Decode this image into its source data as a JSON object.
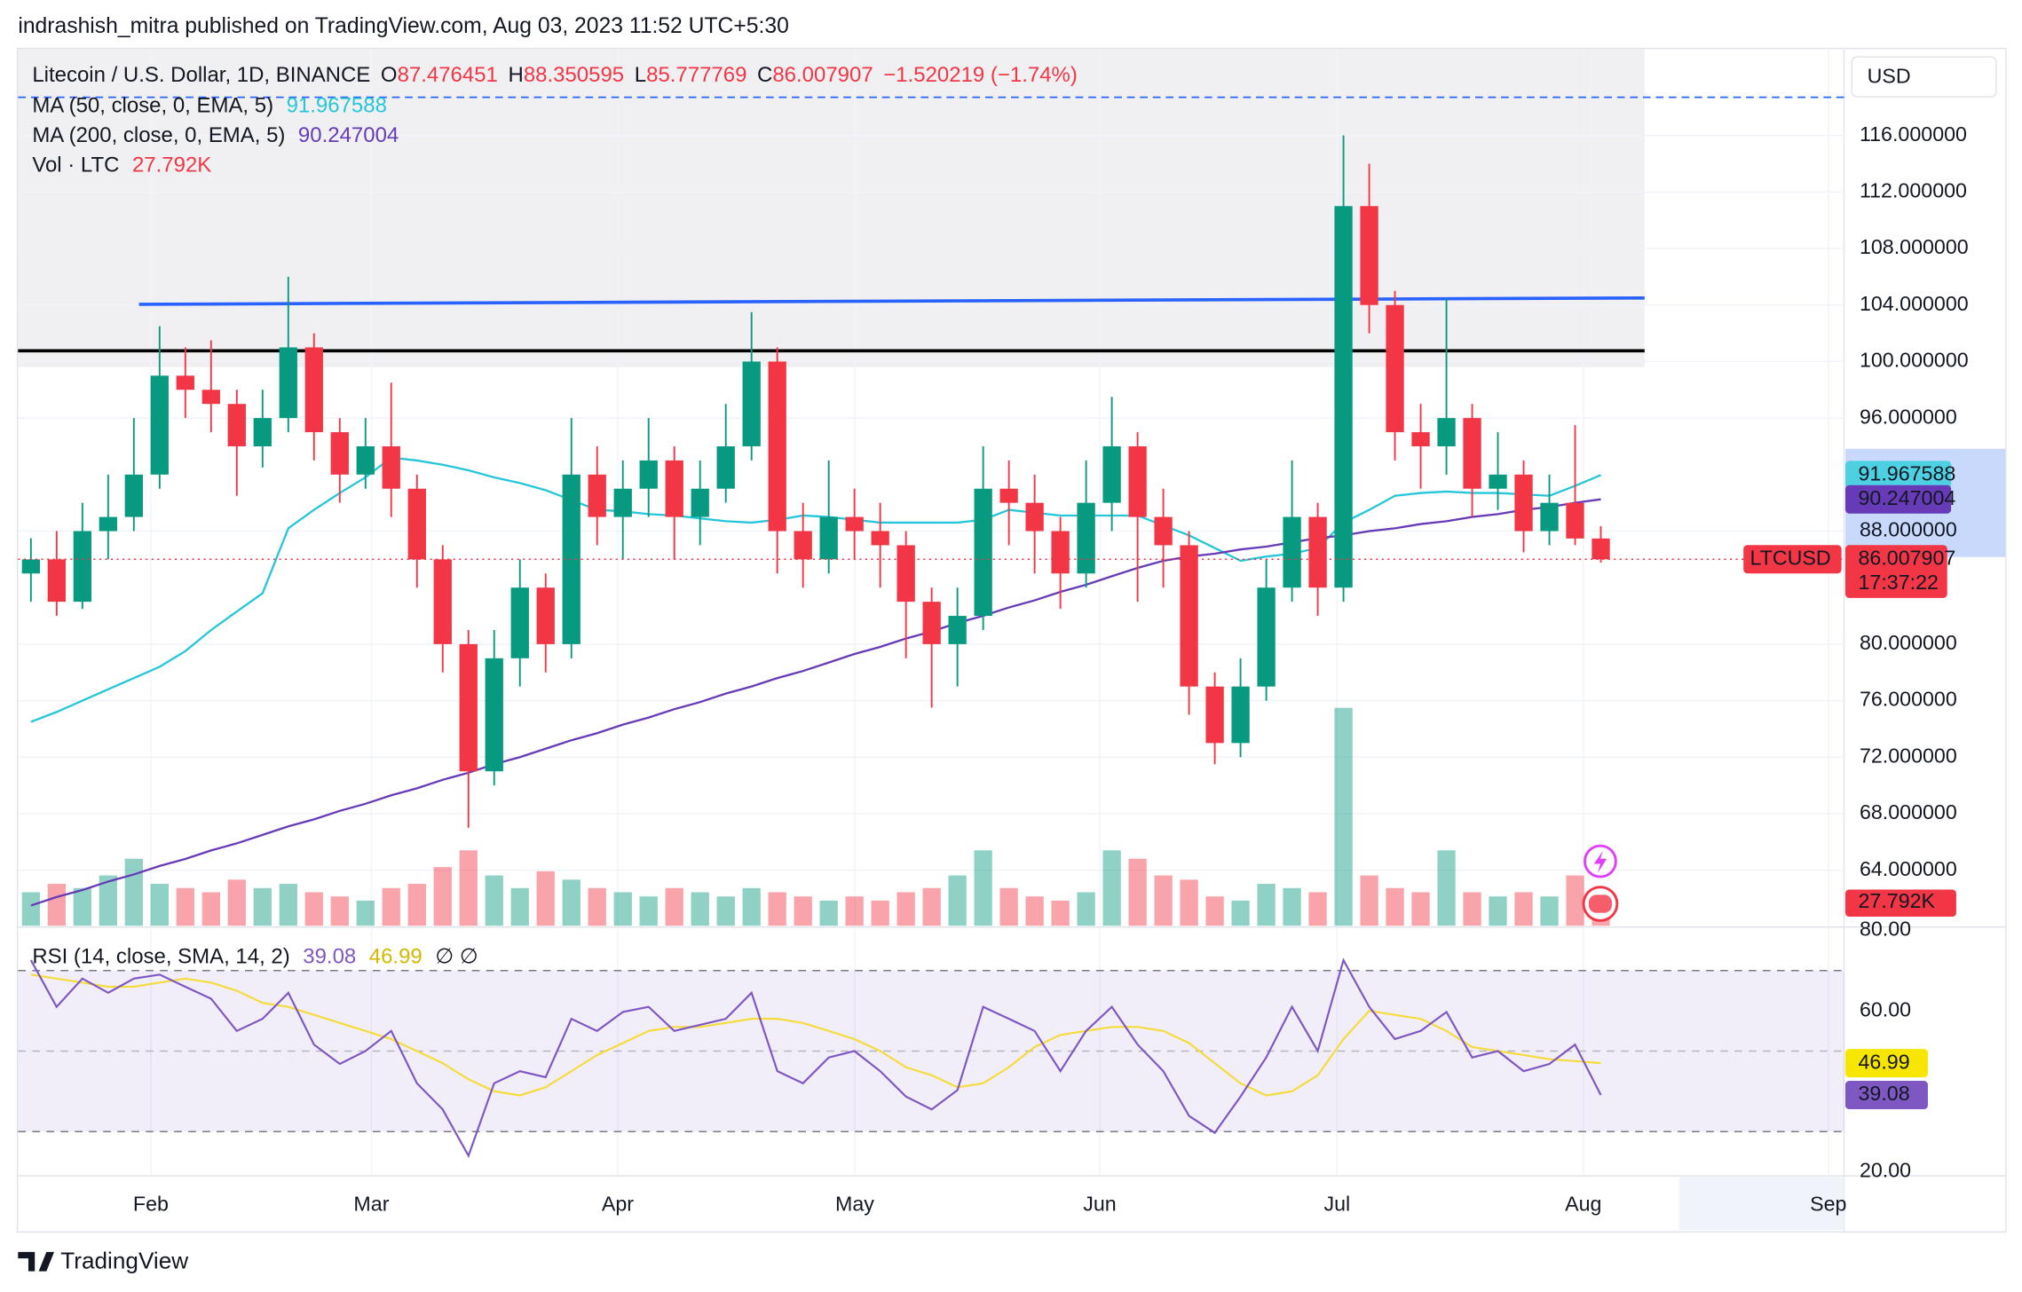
{
  "header": "indrashish_mitra published on TradingView.com, Aug 03, 2023 11:52 UTC+5:30",
  "footer_logo": "TradingView",
  "chart_data": {
    "type": "candlestick",
    "title": "Litecoin / U.S. Dollar, 1D, BINANCE",
    "ohlc_letters": [
      "O",
      "H",
      "L",
      "C"
    ],
    "change": "−1.520219 (−1.74%)",
    "currency": "USD",
    "symbol": "LTCUSD",
    "countdown": "17:37:22",
    "up_color": "#089981",
    "down_color": "#f23645",
    "candles": {
      "open": [
        85,
        86,
        83,
        88,
        89,
        92,
        99,
        98,
        97,
        94,
        96,
        101,
        95,
        92,
        94,
        91,
        86,
        80,
        71,
        79,
        84,
        80,
        92,
        89,
        91,
        93,
        89,
        91,
        94,
        100,
        88,
        86,
        89,
        88,
        87,
        83,
        80,
        82,
        91,
        90,
        88,
        85,
        90,
        94,
        89,
        87,
        77,
        73,
        77,
        84,
        89,
        84,
        111,
        104,
        95,
        94,
        96,
        91,
        92,
        88,
        90,
        87.476451
      ],
      "high": [
        87.5,
        88,
        90,
        92,
        96,
        102.5,
        101,
        101.5,
        98,
        98,
        106,
        102,
        96,
        96,
        98.5,
        92,
        87,
        81,
        81,
        86,
        85,
        96,
        94,
        93,
        96,
        94,
        93,
        97,
        103.5,
        101,
        90,
        93,
        91,
        90,
        88,
        84,
        84,
        94,
        93,
        92,
        89,
        93,
        97.5,
        95,
        91,
        88,
        78,
        79,
        86,
        93,
        90,
        116,
        114,
        105,
        97,
        104.5,
        97,
        95,
        93,
        92,
        95.5,
        88.350595
      ],
      "low": [
        83,
        82,
        82.5,
        86,
        88,
        91,
        96,
        95,
        90.5,
        92.5,
        95,
        93,
        90,
        91,
        89,
        84,
        78,
        67,
        70,
        77,
        78,
        79,
        87,
        86,
        89,
        86,
        87,
        90,
        93,
        85,
        84,
        85,
        86,
        84,
        79,
        75.5,
        77,
        81,
        87,
        85,
        82.5,
        84,
        88,
        83,
        84,
        75,
        71.5,
        72,
        76,
        83,
        82,
        83,
        102,
        93,
        91,
        92,
        89,
        89.5,
        86.5,
        87,
        87,
        85.777769
      ],
      "close": [
        86,
        83,
        88,
        89,
        92,
        99,
        98,
        97,
        94,
        96,
        101,
        95,
        92,
        94,
        91,
        86,
        80,
        71,
        79,
        84,
        80,
        92,
        89,
        91,
        93,
        89,
        91,
        94,
        100,
        88,
        86,
        89,
        88,
        87,
        83,
        80,
        82,
        91,
        90,
        88,
        85,
        90,
        94,
        89,
        87,
        77,
        73,
        77,
        84,
        89,
        84,
        111,
        104,
        95,
        94,
        96,
        91,
        92,
        88,
        90,
        87.476451,
        86.007907
      ]
    },
    "xlim": [
      -0.5,
      70.45
    ],
    "xticks": [
      {
        "value": 4.66,
        "label": "Feb"
      },
      {
        "value": 13.23,
        "label": "Mar"
      },
      {
        "value": 22.8,
        "label": "Apr"
      },
      {
        "value": 32.01,
        "label": "May"
      },
      {
        "value": 41.53,
        "label": "Jun"
      },
      {
        "value": 50.75,
        "label": "Jul"
      },
      {
        "value": 60.32,
        "label": "Aug"
      },
      {
        "value": 69.84,
        "label": "Sep"
      }
    ],
    "ylim": [
      60.07,
      122.11
    ],
    "yticks": [
      {
        "value": 116,
        "label": "116.000000"
      },
      {
        "value": 112,
        "label": "112.000000"
      },
      {
        "value": 108,
        "label": "108.000000"
      },
      {
        "value": 104,
        "label": "104.000000"
      },
      {
        "value": 100,
        "label": "100.000000"
      },
      {
        "value": 96,
        "label": "96.000000"
      },
      {
        "value": 88,
        "label": "88.000000"
      },
      {
        "value": 80,
        "label": "80.000000"
      },
      {
        "value": 76,
        "label": "76.000000"
      },
      {
        "value": 72,
        "label": "72.000000"
      },
      {
        "value": 68,
        "label": "68.000000"
      },
      {
        "value": 64,
        "label": "64.000000"
      }
    ],
    "grid": true,
    "series": [
      {
        "name": "MA (50, close, 0, EMA, 5)",
        "color": "#26c6da",
        "values": [
          74.5,
          75.2,
          76,
          76.8,
          77.6,
          78.4,
          79.5,
          81,
          82.3,
          83.6,
          88.2,
          89.5,
          90.7,
          91.8,
          93.2,
          93,
          92.7,
          92.3,
          91.8,
          91.4,
          90.9,
          90.2,
          89.5,
          89.4,
          89.2,
          89.1,
          88.9,
          88.7,
          88.6,
          88.8,
          89.1,
          89.0,
          88.8,
          88.6,
          88.6,
          88.6,
          88.6,
          88.8,
          89.5,
          89.3,
          89.1,
          89.1,
          89.1,
          89.1,
          88.4,
          87.7,
          86.8,
          85.9,
          86.2,
          86.4,
          86.8,
          88.6,
          89.5,
          90.5,
          90.7,
          90.8,
          90.7,
          90.7,
          90.6,
          90.5,
          91.2,
          91.967588
        ]
      },
      {
        "name": "MA (200, close, 0, EMA, 5)",
        "color": "#673ab7",
        "values": [
          61.5,
          62.1,
          62.6,
          63.2,
          63.7,
          64.3,
          64.8,
          65.4,
          65.9,
          66.5,
          67.1,
          67.6,
          68.2,
          68.7,
          69.3,
          69.8,
          70.4,
          70.9,
          71.5,
          72.0,
          72.6,
          73.2,
          73.7,
          74.3,
          74.8,
          75.4,
          75.9,
          76.5,
          77.0,
          77.6,
          78.1,
          78.7,
          79.3,
          79.8,
          80.4,
          80.9,
          81.5,
          82.0,
          82.6,
          83.1,
          83.7,
          84.2,
          84.8,
          85.4,
          85.9,
          86.2,
          86.4,
          86.7,
          86.9,
          87.2,
          87.5,
          87.7,
          88.0,
          88.2,
          88.5,
          88.7,
          89.0,
          89.2,
          89.5,
          89.7,
          90.0,
          90.247004
        ]
      }
    ],
    "volume": {
      "name": "Vol · LTC",
      "values": [
        40,
        50,
        45,
        60,
        80,
        50,
        45,
        40,
        55,
        45,
        50,
        40,
        35,
        30,
        45,
        50,
        70,
        90,
        60,
        45,
        65,
        55,
        45,
        40,
        35,
        45,
        40,
        35,
        45,
        40,
        35,
        30,
        35,
        30,
        40,
        45,
        60,
        90,
        45,
        35,
        30,
        40,
        90,
        80,
        60,
        55,
        35,
        30,
        50,
        45,
        40,
        260,
        60,
        45,
        40,
        90,
        40,
        35,
        40,
        35,
        60,
        27.792
      ],
      "value_labels": {
        "61": "27.792K"
      }
    },
    "drawings": {
      "zone": {
        "x": [
          -0.5,
          62.7
        ],
        "y": [
          99.6,
          122.11
        ],
        "color": "#f0f0f2"
      },
      "blue_line": {
        "x": [
          4.2,
          62.7
        ],
        "y": [
          104.05,
          104.5
        ],
        "color": "#2962ff"
      },
      "black_line": {
        "x": [
          -0.5,
          62.7
        ],
        "y": 100.76,
        "color": "#000000"
      },
      "dashed_line": {
        "y": 118.7,
        "color": "#2962ff"
      }
    },
    "rsi": {
      "name": "RSI (14, close, SMA, 14, 2)",
      "na": "∅ ∅",
      "color": "#7e57c2",
      "sma_color": "#f5dc3c",
      "values": [
        72.6,
        61,
        68,
        64.5,
        68,
        69,
        66,
        63,
        55,
        58,
        64.5,
        51.6,
        46.8,
        50,
        55,
        42,
        35.5,
        24,
        42,
        45,
        43.5,
        58,
        55,
        59.7,
        61,
        55,
        56.5,
        58,
        64.5,
        45,
        42,
        48.4,
        50,
        45,
        38.7,
        35.5,
        40.3,
        61,
        58,
        55,
        45,
        55,
        61,
        51.6,
        45,
        33.9,
        29.7,
        38.7,
        48.4,
        61,
        50,
        72.6,
        61,
        53,
        55,
        59.7,
        48.4,
        50,
        45,
        46.8,
        51.6,
        39.08
      ],
      "sma": [
        69,
        68,
        67,
        66,
        66,
        67,
        68,
        67,
        65,
        62,
        61,
        59,
        57,
        55,
        53,
        50,
        47,
        43,
        40,
        39,
        41,
        45,
        49,
        52,
        55,
        56,
        56,
        57,
        58,
        58,
        57,
        55,
        53,
        50,
        46,
        44,
        41,
        42,
        46,
        51,
        54,
        55,
        56,
        56,
        55,
        52,
        47,
        42,
        39,
        40,
        44,
        53,
        60,
        59,
        58,
        55,
        51,
        50,
        49,
        48,
        47.5,
        46.99
      ],
      "ylim": [
        19,
        80.5
      ],
      "yticks": [
        {
          "value": 80,
          "label": "80.00"
        },
        {
          "value": 60,
          "label": "60.00"
        },
        {
          "value": 20,
          "label": "20.00"
        }
      ],
      "bands": [
        70,
        50,
        30
      ]
    }
  }
}
